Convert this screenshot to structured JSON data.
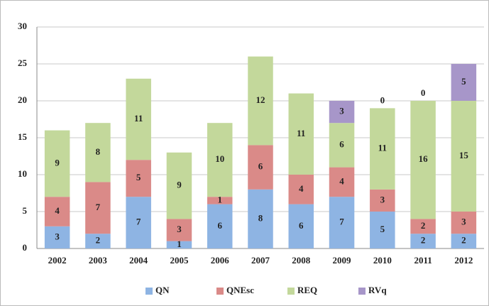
{
  "chart_data": {
    "type": "stacked_bar",
    "categories": [
      "2002",
      "2003",
      "2004",
      "2005",
      "2006",
      "2007",
      "2008",
      "2009",
      "2010",
      "2011",
      "2012"
    ],
    "series": [
      {
        "name": "QN",
        "color": "#8eb4e3",
        "values": [
          3,
          2,
          7,
          1,
          6,
          8,
          6,
          7,
          5,
          2,
          2
        ]
      },
      {
        "name": "QNEsc",
        "color": "#da8a88",
        "values": [
          4,
          7,
          5,
          3,
          1,
          6,
          4,
          4,
          3,
          2,
          3
        ]
      },
      {
        "name": "REQ",
        "color": "#c3d89b",
        "values": [
          9,
          8,
          11,
          9,
          10,
          12,
          11,
          6,
          11,
          16,
          15
        ]
      },
      {
        "name": "RVq",
        "color": "#a796c9",
        "values": [
          null,
          null,
          null,
          null,
          null,
          null,
          null,
          3,
          0,
          0,
          5
        ]
      }
    ],
    "ylim": [
      0,
      30
    ],
    "yticks": [
      0,
      5,
      10,
      15,
      20,
      25,
      30
    ],
    "grid": true,
    "legend": "bottom"
  }
}
